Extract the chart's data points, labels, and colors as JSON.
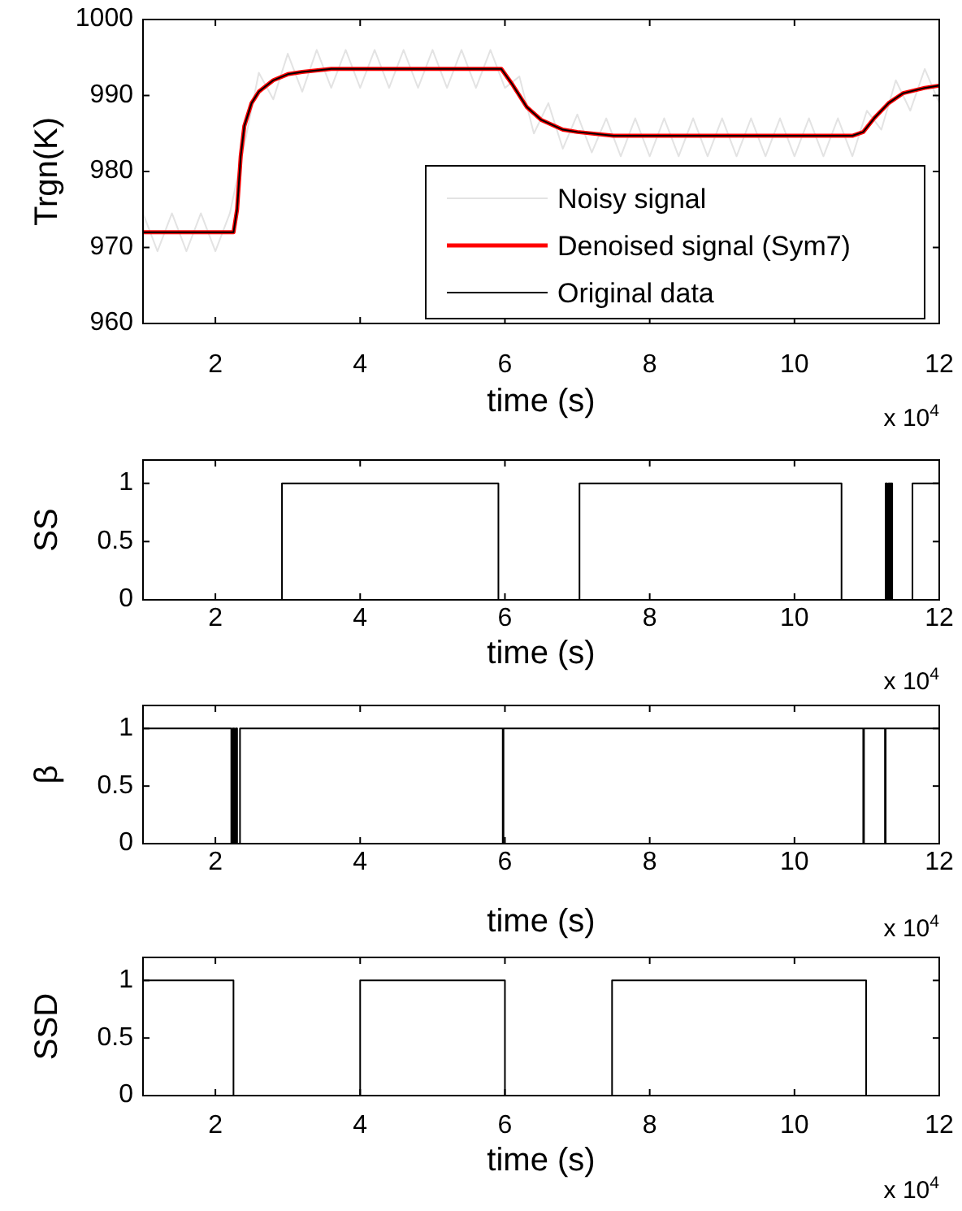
{
  "chart_data": [
    {
      "type": "line",
      "xlabel": "time (s)",
      "ylabel": "Trgn(K)",
      "xlim": [
        1,
        12
      ],
      "xticks": [
        2,
        4,
        6,
        8,
        10,
        12
      ],
      "ylim": [
        960,
        1000
      ],
      "yticks": [
        960,
        970,
        980,
        990,
        1000
      ],
      "legend": "bottom right",
      "annotations": [
        "x 10$^{4}$"
      ],
      "series": [
        {
          "name": "Noisy signal",
          "color": "#e3e3e3",
          "x": [
            1,
            1.2,
            1.4,
            1.6,
            1.8,
            2,
            2.2,
            2.4,
            2.6,
            2.8,
            3,
            3.2,
            3.4,
            3.6,
            3.8,
            4,
            4.2,
            4.4,
            4.6,
            4.8,
            5,
            5.2,
            5.4,
            5.6,
            5.8,
            6,
            6.2,
            6.4,
            6.6,
            6.8,
            7,
            7.2,
            7.4,
            7.6,
            7.8,
            8,
            8.2,
            8.4,
            8.6,
            8.8,
            9,
            9.2,
            9.4,
            9.6,
            9.8,
            10,
            10.2,
            10.4,
            10.6,
            10.8,
            11,
            11.2,
            11.4,
            11.6,
            11.8,
            12
          ],
          "values": [
            974.5,
            969.5,
            974.5,
            969.5,
            974.5,
            969.5,
            974.5,
            983.5,
            993,
            989.5,
            995.5,
            990.5,
            996,
            991,
            996,
            991,
            996,
            991,
            996,
            991,
            996,
            991,
            996,
            991,
            996,
            991,
            992.5,
            985,
            989,
            983,
            987.5,
            982.5,
            987,
            982,
            987,
            982,
            987,
            982,
            987,
            982,
            987,
            982,
            987,
            982,
            987,
            982,
            987,
            982,
            987,
            982,
            988,
            985.5,
            992,
            988,
            993.5,
            989
          ]
        },
        {
          "name": "Denoised signal (Sym7)",
          "color": "#ff0000",
          "x": [
            1,
            2.25,
            2.3,
            2.35,
            2.4,
            2.5,
            2.6,
            2.8,
            3,
            3.2,
            3.6,
            5.95,
            6.1,
            6.3,
            6.5,
            6.8,
            7,
            7.5,
            10.8,
            10.95,
            11.1,
            11.3,
            11.5,
            11.8,
            12
          ],
          "values": [
            972,
            972,
            975,
            982,
            986,
            989,
            990.5,
            992,
            992.8,
            993.1,
            993.5,
            993.5,
            991.5,
            988.5,
            986.8,
            985.5,
            985.2,
            984.7,
            984.7,
            985.2,
            987,
            989,
            990.3,
            991,
            991.3
          ]
        },
        {
          "name": "Original data",
          "color": "#000000",
          "x": [
            1,
            2.25,
            2.3,
            2.35,
            2.4,
            2.5,
            2.6,
            2.8,
            3,
            3.2,
            3.6,
            5.95,
            6.1,
            6.3,
            6.5,
            6.8,
            7,
            7.5,
            10.8,
            10.95,
            11.1,
            11.3,
            11.5,
            11.8,
            12
          ],
          "values": [
            972,
            972,
            975,
            982,
            986,
            989,
            990.5,
            992,
            992.8,
            993.1,
            993.5,
            993.5,
            991.5,
            988.5,
            986.8,
            985.5,
            985.2,
            984.7,
            984.7,
            985.2,
            987,
            989,
            990.3,
            991,
            991.3
          ]
        }
      ]
    },
    {
      "type": "step",
      "xlabel": "time (s)",
      "ylabel": "SS",
      "xlim": [
        1,
        12
      ],
      "xticks": [
        2,
        4,
        6,
        8,
        10,
        12
      ],
      "ylim": [
        0,
        1.2
      ],
      "yticks": [
        0,
        0.5,
        1
      ],
      "annotations": [
        "x 10$^{4}$"
      ],
      "series": [
        {
          "color": "#000000",
          "x": [
            1,
            2.92,
            5.91,
            7.03,
            10.65,
            11.26,
            11.28,
            11.3,
            11.32,
            11.33,
            11.35,
            11.63,
            12
          ],
          "values": [
            0,
            1,
            0,
            1,
            0,
            1,
            0,
            1,
            0,
            1,
            0,
            1,
            1
          ]
        }
      ]
    },
    {
      "type": "step",
      "xlabel": "time (s)",
      "ylabel": "β",
      "xlim": [
        1,
        12
      ],
      "xticks": [
        2,
        4,
        6,
        8,
        10,
        12
      ],
      "ylim": [
        0,
        1.2
      ],
      "yticks": [
        0,
        0.5,
        1
      ],
      "annotations": [
        "x 10$^{4}$"
      ],
      "series": [
        {
          "color": "#000000",
          "x": [
            1,
            2.22,
            2.24,
            2.26,
            2.28,
            2.3,
            2.34,
            5.97,
            5.98,
            10.95,
            10.96,
            11.25,
            11.26,
            12
          ],
          "values": [
            1,
            0,
            1,
            0,
            1,
            0,
            1,
            0,
            1,
            0,
            1,
            0,
            1,
            1
          ]
        }
      ]
    },
    {
      "type": "step",
      "xlabel": "time (s)",
      "ylabel": "SSD",
      "xlim": [
        1,
        12
      ],
      "xticks": [
        2,
        4,
        6,
        8,
        10,
        12
      ],
      "ylim": [
        0,
        1.2
      ],
      "yticks": [
        0,
        0.5,
        1
      ],
      "annotations": [
        "x 10$^{4}$"
      ],
      "series": [
        {
          "color": "#000000",
          "x": [
            1,
            2.25,
            4,
            6,
            7.48,
            10.99,
            12
          ],
          "values": [
            1,
            0,
            1,
            0,
            1,
            0,
            0
          ]
        }
      ]
    }
  ]
}
